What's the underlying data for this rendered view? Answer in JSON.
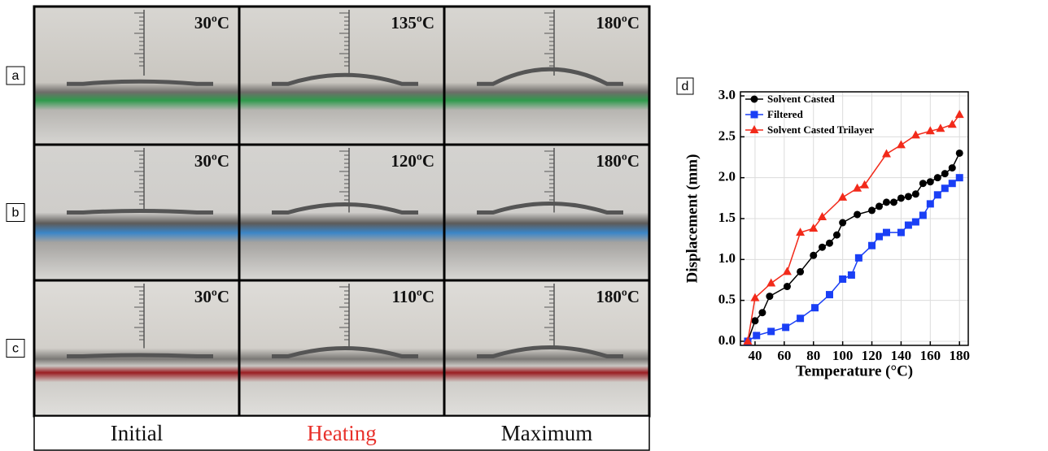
{
  "photo_panels": {
    "rows": [
      {
        "label": "a",
        "temps": [
          "30ºC",
          "135ºC",
          "180ºC"
        ]
      },
      {
        "label": "b",
        "temps": [
          "30ºC",
          "120ºC",
          "180ºC"
        ]
      },
      {
        "label": "c",
        "temps": [
          "30ºC",
          "110ºC",
          "180ºC"
        ]
      }
    ],
    "columns": [
      "Initial",
      "Heating",
      "Maximum"
    ]
  },
  "chart_data": {
    "type": "line",
    "panel_label": "d",
    "x_label": "Temperature (°C)",
    "y_label": "Displacement (mm)",
    "xlim": [
      30,
      186
    ],
    "xticks": [
      40,
      60,
      80,
      100,
      120,
      140,
      160,
      180
    ],
    "ylim": [
      -0.05,
      3.05
    ],
    "yticks": [
      {
        "value": 0,
        "label": "0.0"
      },
      0.5,
      {
        "value": 1,
        "label": "1.0"
      },
      1.5,
      {
        "value": 2,
        "label": "2.0"
      },
      2.5,
      {
        "value": 3,
        "label": "3.0"
      }
    ],
    "grid": true,
    "legend": "upper left",
    "series": [
      {
        "name": "Solvent Casted",
        "color": "#000000",
        "marker": "circle",
        "x": [
          35,
          40,
          45,
          50,
          62,
          71,
          80,
          86,
          91,
          96,
          100,
          110,
          120,
          125,
          130,
          135,
          140,
          145,
          150,
          155,
          160,
          165,
          170,
          175,
          180
        ],
        "values": [
          0.0,
          0.25,
          0.35,
          0.55,
          0.67,
          0.85,
          1.05,
          1.15,
          1.2,
          1.3,
          1.45,
          1.55,
          1.6,
          1.65,
          1.7,
          1.7,
          1.75,
          1.77,
          1.8,
          1.93,
          1.95,
          2.0,
          2.05,
          2.12,
          2.3
        ]
      },
      {
        "name": "Filtered",
        "color": "#1a3ff5",
        "marker": "square",
        "x": [
          35,
          41,
          51,
          61,
          71,
          81,
          91,
          100,
          106,
          111,
          120,
          125,
          130,
          140,
          145,
          150,
          155,
          160,
          165,
          170,
          175,
          180
        ],
        "values": [
          0.0,
          0.07,
          0.12,
          0.17,
          0.28,
          0.41,
          0.57,
          0.76,
          0.81,
          1.02,
          1.17,
          1.28,
          1.33,
          1.33,
          1.42,
          1.46,
          1.54,
          1.68,
          1.79,
          1.87,
          1.93,
          2.0
        ]
      },
      {
        "name": "Solvent Casted Trilayer",
        "color": "#f22a1a",
        "marker": "triangle",
        "x": [
          35,
          40,
          51,
          62,
          71,
          80,
          86,
          100,
          110,
          115,
          130,
          140,
          150,
          160,
          167,
          175,
          180
        ],
        "values": [
          0.0,
          0.53,
          0.71,
          0.85,
          1.33,
          1.38,
          1.52,
          1.76,
          1.87,
          1.91,
          2.29,
          2.4,
          2.52,
          2.57,
          2.6,
          2.65,
          2.77
        ]
      }
    ]
  }
}
